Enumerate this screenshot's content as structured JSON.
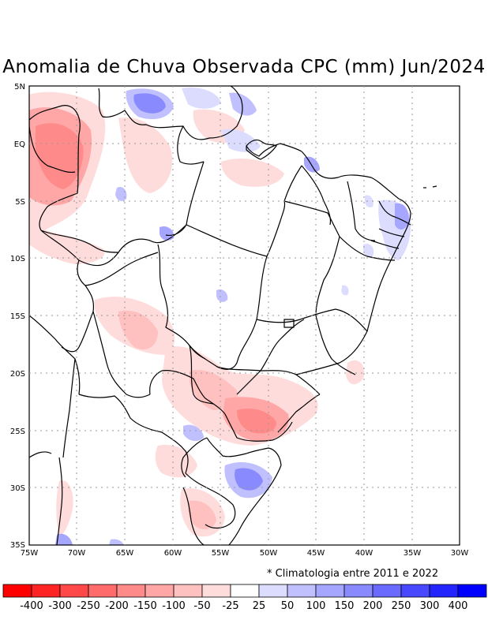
{
  "title": "Anomalia de Chuva Observada CPC (mm) Jun/2024",
  "lat_labels": [
    "5N",
    "EQ",
    "5S",
    "10S",
    "15S",
    "20S",
    "25S",
    "30S",
    "35S"
  ],
  "lon_labels": [
    "75W",
    "70W",
    "65W",
    "60W",
    "55W",
    "50W",
    "45W",
    "40W",
    "35W",
    "30W"
  ],
  "note": "* Climatologia entre 2011 e 2022",
  "colorbar": {
    "colors": [
      "#ff0000",
      "#ff2424",
      "#ff4848",
      "#ff6a6a",
      "#ff8a8a",
      "#ffa6a6",
      "#ffc0c0",
      "#ffdcdc",
      "#ffffff",
      "#dcdcff",
      "#c0c0ff",
      "#a6a6ff",
      "#8a8aff",
      "#6a6aff",
      "#4848ff",
      "#2424ff",
      "#0000ff"
    ],
    "labels": [
      "-400",
      "-300",
      "-250",
      "-200",
      "-150",
      "-100",
      "-50",
      "-25",
      "25",
      "50",
      "100",
      "150",
      "200",
      "250",
      "300",
      "400"
    ]
  }
}
